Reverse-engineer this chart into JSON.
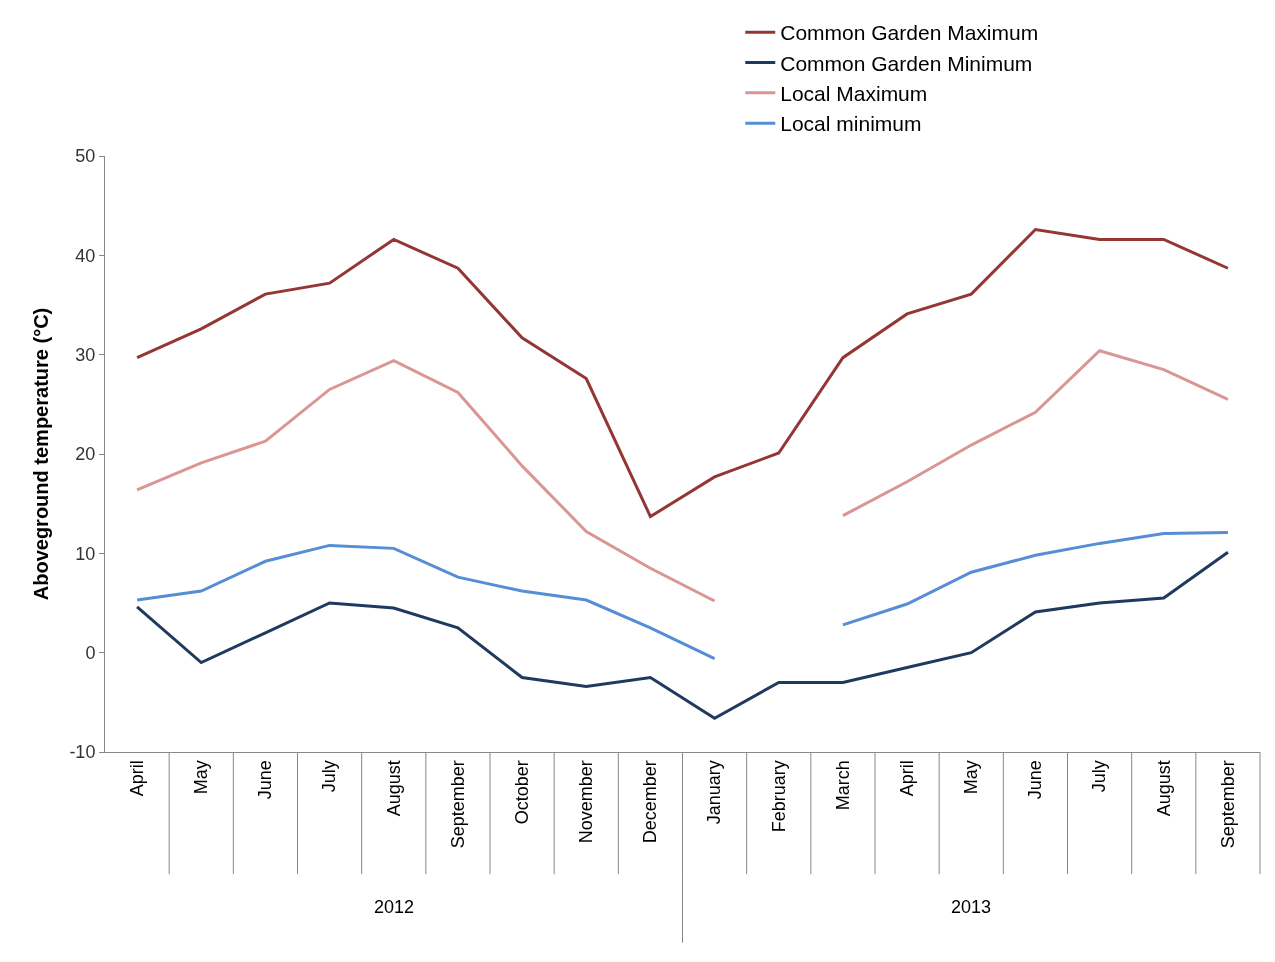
{
  "chart_data": {
    "type": "line",
    "ylabel": "Aboveground temperature (°C)",
    "categories": [
      "April",
      "May",
      "June",
      "July",
      "August",
      "September",
      "October",
      "November",
      "December",
      "January",
      "February",
      "March",
      "April",
      "May",
      "June",
      "July",
      "August",
      "September"
    ],
    "series": [
      {
        "name": "Common Garden Maximum",
        "color": "#943634",
        "values": [
          29.7,
          32.6,
          36.1,
          37.2,
          41.6,
          38.7,
          31.7,
          27.6,
          13.7,
          17.7,
          20.1,
          29.7,
          34.1,
          36.1,
          42.6,
          41.6,
          41.6,
          38.7
        ]
      },
      {
        "name": "Common Garden Minimum",
        "color": "#1f3a5f",
        "values": [
          4.6,
          -1.0,
          2.0,
          5.0,
          4.5,
          2.5,
          -2.5,
          -3.4,
          -2.5,
          -6.6,
          -3.0,
          -3.0,
          -1.5,
          0.0,
          4.1,
          5.0,
          5.5,
          10.1
        ]
      },
      {
        "name": "Local Maximum",
        "color": "#d99694",
        "values": [
          16.4,
          19.1,
          21.3,
          26.5,
          29.4,
          26.2,
          18.8,
          12.2,
          8.5,
          5.2,
          null,
          13.8,
          17.2,
          20.9,
          24.2,
          30.4,
          28.5,
          25.5
        ]
      },
      {
        "name": "Local minimum",
        "color": "#558ed5",
        "values": [
          5.3,
          6.2,
          9.2,
          10.8,
          10.5,
          7.6,
          6.2,
          5.3,
          2.5,
          -0.6,
          null,
          2.8,
          4.9,
          8.1,
          9.8,
          11.0,
          12.0,
          12.1
        ]
      }
    ],
    "ylim": [
      -10,
      50
    ],
    "yticks": [
      -10,
      0,
      10,
      20,
      30,
      40,
      50
    ],
    "annotations": [
      "2012",
      "2013"
    ],
    "grid": false,
    "legend": "top right",
    "marker": "none",
    "line_style": "solid"
  }
}
